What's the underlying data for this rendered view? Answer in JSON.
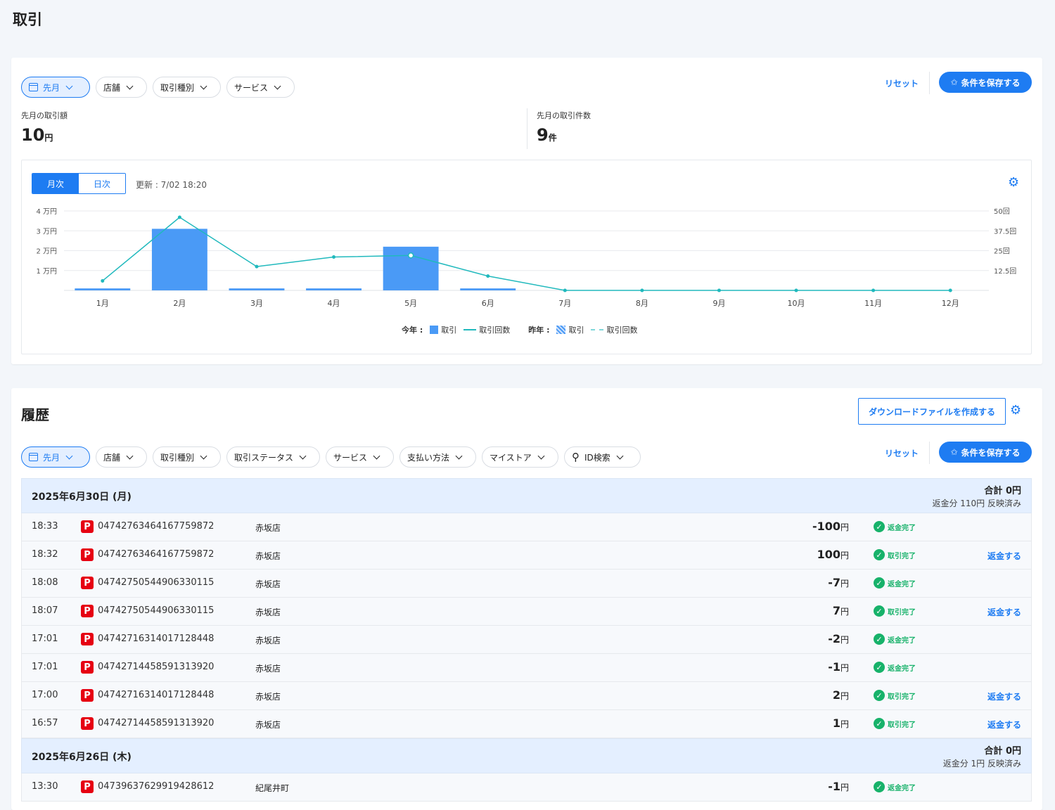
{
  "page": {
    "title": "取引"
  },
  "summary": {
    "filters": [
      {
        "label": "先月",
        "active": true,
        "icon": "calendar-icon"
      },
      {
        "label": "店舗"
      },
      {
        "label": "取引種別"
      },
      {
        "label": "サービス"
      }
    ],
    "reset_label": "リセット",
    "save_label": "条件を保存する",
    "amount_label": "先月の取引額",
    "amount_value": "10",
    "amount_unit": "円",
    "count_label": "先月の取引件数",
    "count_value": "9",
    "count_unit": "件",
    "chart_tabs": {
      "monthly": "月次",
      "daily": "日次"
    },
    "updated": "更新 : 7/02 18:20"
  },
  "legend": {
    "this_year": "今年 :",
    "last_year": "昨年 :",
    "tx": "取引",
    "count": "取引回数",
    "tx2": "取引",
    "count2": "取引回数"
  },
  "chart_data": {
    "type": "bar",
    "categories": [
      "1月",
      "2月",
      "3月",
      "4月",
      "5月",
      "6月",
      "7月",
      "8月",
      "9月",
      "10月",
      "11月",
      "12月"
    ],
    "series": [
      {
        "name": "取引",
        "axis": "left",
        "values": [
          1000,
          31000,
          1000,
          1000,
          22000,
          1000,
          0,
          0,
          0,
          0,
          0,
          0
        ]
      },
      {
        "name": "取引回数",
        "axis": "right",
        "type": "line",
        "values": [
          6,
          46,
          15,
          21,
          22,
          9,
          0,
          0,
          0,
          0,
          0,
          0
        ]
      }
    ],
    "left_ticks": [
      "1 万円",
      "2 万円",
      "3 万円",
      "4 万円"
    ],
    "right_ticks": [
      "12.5回",
      "25回",
      "37.5回",
      "50回"
    ],
    "ylim_left": [
      0,
      40000
    ],
    "ylim_right": [
      0,
      50
    ],
    "colors": {
      "bar": "#4a9af6",
      "line": "#20b9bd"
    }
  },
  "history": {
    "title": "履歴",
    "download_label": "ダウンロードファイルを作成する",
    "filters": [
      {
        "label": "先月",
        "active": true,
        "icon": "calendar-icon"
      },
      {
        "label": "店舗"
      },
      {
        "label": "取引種別"
      },
      {
        "label": "取引ステータス"
      },
      {
        "label": "サービス"
      },
      {
        "label": "支払い方法"
      },
      {
        "label": "マイストア"
      },
      {
        "label": "ID検索",
        "icon": "search-icon"
      }
    ],
    "reset_label": "リセット",
    "save_label": "条件を保存する",
    "groups": [
      {
        "date": "2025年6月30日 (月)",
        "total": "合計 0円",
        "refund": "返金分 110円 反映済み",
        "rows": [
          {
            "time": "18:33",
            "id": "04742763464167759872",
            "store": "赤坂店",
            "amount": "-100",
            "unit": "円",
            "status": "返金完了",
            "action": ""
          },
          {
            "time": "18:32",
            "id": "04742763464167759872",
            "store": "赤坂店",
            "amount": "100",
            "unit": "円",
            "status": "取引完了",
            "action": "返金する"
          },
          {
            "time": "18:08",
            "id": "04742750544906330115",
            "store": "赤坂店",
            "amount": "-7",
            "unit": "円",
            "status": "返金完了",
            "action": ""
          },
          {
            "time": "18:07",
            "id": "04742750544906330115",
            "store": "赤坂店",
            "amount": "7",
            "unit": "円",
            "status": "取引完了",
            "action": "返金する"
          },
          {
            "time": "17:01",
            "id": "04742716314017128448",
            "store": "赤坂店",
            "amount": "-2",
            "unit": "円",
            "status": "返金完了",
            "action": ""
          },
          {
            "time": "17:01",
            "id": "04742714458591313920",
            "store": "赤坂店",
            "amount": "-1",
            "unit": "円",
            "status": "返金完了",
            "action": ""
          },
          {
            "time": "17:00",
            "id": "04742716314017128448",
            "store": "赤坂店",
            "amount": "2",
            "unit": "円",
            "status": "取引完了",
            "action": "返金する"
          },
          {
            "time": "16:57",
            "id": "04742714458591313920",
            "store": "赤坂店",
            "amount": "1",
            "unit": "円",
            "status": "取引完了",
            "action": "返金する"
          }
        ]
      },
      {
        "date": "2025年6月26日 (木)",
        "total": "合計 0円",
        "refund": "返金分 1円 反映済み",
        "rows": [
          {
            "time": "13:30",
            "id": "04739637629919428612",
            "store": "紀尾井町",
            "amount": "-1",
            "unit": "円",
            "status": "返金完了",
            "action": ""
          }
        ]
      }
    ]
  }
}
